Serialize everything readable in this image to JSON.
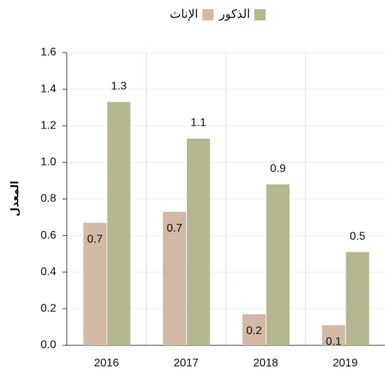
{
  "chart_data": {
    "type": "bar",
    "categories": [
      "2016",
      "2017",
      "2018",
      "2019"
    ],
    "series": [
      {
        "name": "الإناث",
        "color": "#d3b8a5",
        "values": [
          0.67,
          0.73,
          0.17,
          0.11
        ],
        "value_labels": [
          "0.7",
          "0.7",
          "0.2",
          "0.1"
        ]
      },
      {
        "name": "الذكور",
        "color": "#b6b790",
        "values": [
          1.33,
          1.13,
          0.88,
          0.51
        ],
        "value_labels": [
          "1.3",
          "1.1",
          "0.9",
          "0.5"
        ]
      }
    ],
    "y_label": "المعدل",
    "ylim": [
      0,
      1.6
    ],
    "yticks": [
      {
        "value": 0,
        "label": "0.0"
      },
      0.2,
      0.4,
      0.6,
      0.8,
      {
        "value": 1,
        "label": "1.0"
      },
      1.2,
      1.4,
      1.6
    ],
    "grid": true,
    "legend": "top"
  }
}
